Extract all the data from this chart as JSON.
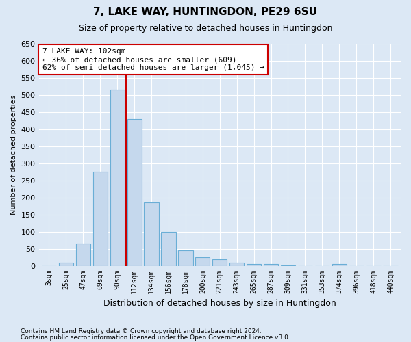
{
  "title1": "7, LAKE WAY, HUNTINGDON, PE29 6SU",
  "title2": "Size of property relative to detached houses in Huntingdon",
  "xlabel": "Distribution of detached houses by size in Huntingdon",
  "ylabel": "Number of detached properties",
  "categories": [
    "3sqm",
    "25sqm",
    "47sqm",
    "69sqm",
    "90sqm",
    "112sqm",
    "134sqm",
    "156sqm",
    "178sqm",
    "200sqm",
    "221sqm",
    "243sqm",
    "265sqm",
    "287sqm",
    "309sqm",
    "331sqm",
    "353sqm",
    "374sqm",
    "396sqm",
    "418sqm",
    "440sqm"
  ],
  "values": [
    0,
    10,
    65,
    275,
    515,
    430,
    185,
    100,
    45,
    25,
    20,
    10,
    5,
    5,
    2,
    0,
    0,
    5,
    0,
    0,
    0
  ],
  "bar_color": "#c5d8ed",
  "bar_edge_color": "#6aaed6",
  "vline_color": "#cc0000",
  "annotation_line1": "7 LAKE WAY: 102sqm",
  "annotation_line2": "← 36% of detached houses are smaller (609)",
  "annotation_line3": "62% of semi-detached houses are larger (1,045) →",
  "annotation_box_color": "#cc0000",
  "ylim": [
    0,
    650
  ],
  "yticks": [
    0,
    50,
    100,
    150,
    200,
    250,
    300,
    350,
    400,
    450,
    500,
    550,
    600,
    650
  ],
  "bg_color": "#dce8f5",
  "footer1": "Contains HM Land Registry data © Crown copyright and database right 2024.",
  "footer2": "Contains public sector information licensed under the Open Government Licence v3.0."
}
